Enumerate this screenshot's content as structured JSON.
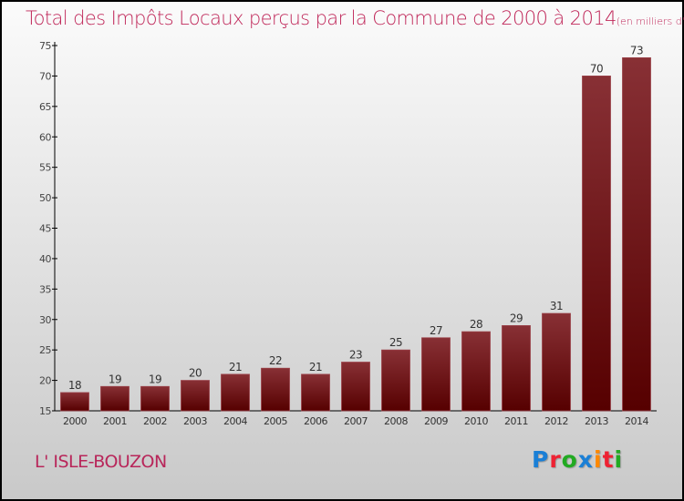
{
  "chart_data": {
    "type": "bar",
    "title": "Total des Impôts Locaux perçus par la Commune de 2000 à 2014",
    "unit_note": "(en milliers d'€)",
    "categories": [
      "2000",
      "2001",
      "2002",
      "2003",
      "2004",
      "2005",
      "2006",
      "2007",
      "2008",
      "2009",
      "2010",
      "2011",
      "2012",
      "2013",
      "2014"
    ],
    "values": [
      18,
      19,
      19,
      20,
      21,
      22,
      21,
      23,
      25,
      27,
      28,
      29,
      31,
      70,
      73
    ],
    "ylim": [
      15,
      75
    ],
    "yticks": [
      15,
      20,
      25,
      30,
      35,
      40,
      45,
      50,
      55,
      60,
      65,
      70,
      75
    ],
    "xlabel": "",
    "ylabel": "",
    "bar_color": "#7a1a1e",
    "grid": false
  },
  "commune": "L' ISLE-BOUZON",
  "logo": "Proxiti"
}
